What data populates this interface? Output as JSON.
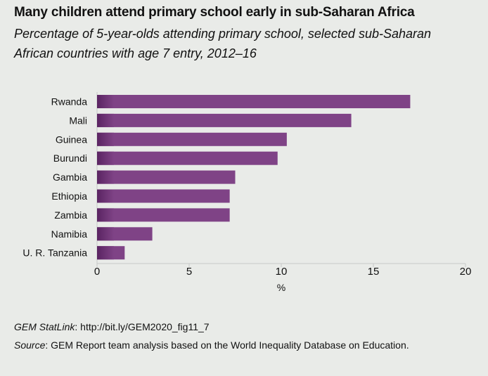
{
  "chart_data": {
    "type": "bar",
    "orientation": "horizontal",
    "title": "Many children attend primary school early in sub-Saharan Africa",
    "subtitle": "Percentage of 5-year-olds attending primary school, selected sub-Saharan African countries with age 7 entry, 2012–16",
    "categories": [
      "Rwanda",
      "Mali",
      "Guinea",
      "Burundi",
      "Gambia",
      "Ethiopia",
      "Zambia",
      "Namibia",
      "U. R. Tanzania"
    ],
    "values": [
      17.0,
      13.8,
      10.3,
      9.8,
      7.5,
      7.2,
      7.2,
      3.0,
      1.5
    ],
    "xlabel": "%",
    "xlim": [
      0,
      20
    ],
    "xticks": [
      0,
      5,
      10,
      15,
      20
    ],
    "grid": false,
    "bar_color": "#7f4386"
  },
  "footer": {
    "statlink_label": "GEM StatLink",
    "statlink_url": ": http://bit.ly/GEM2020_fig11_7",
    "source_label": "Source",
    "source_text": ": GEM Report team analysis based on the World Inequality Database on Education."
  }
}
